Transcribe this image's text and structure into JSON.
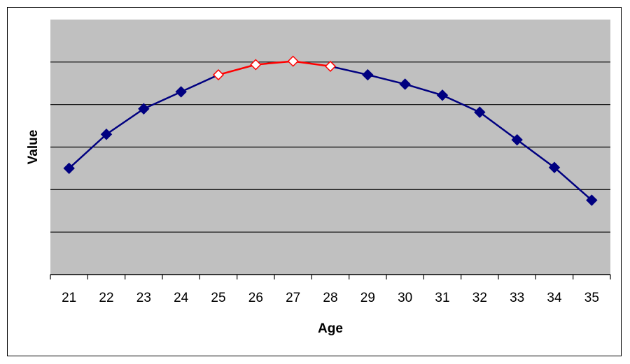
{
  "chart_data": {
    "type": "line",
    "xlabel": "Age",
    "ylabel": "Value",
    "x": [
      21,
      22,
      23,
      24,
      25,
      26,
      27,
      28,
      29,
      30,
      31,
      32,
      33,
      34,
      35
    ],
    "values": [
      2.5,
      3.3,
      3.9,
      4.3,
      4.7,
      4.94,
      5.02,
      4.9,
      4.7,
      4.48,
      4.22,
      3.82,
      3.17,
      2.52,
      1.75
    ],
    "highlight_range": [
      25,
      28
    ],
    "ylim": [
      0,
      6
    ],
    "y_grid_step": 1,
    "y_tick_labels_shown": false,
    "grid": true,
    "legend": "none",
    "colors": {
      "plot_background": "#c0c0c0",
      "series": "#000080",
      "highlight": "#ff0000",
      "highlight_marker_fill": "#ffffff"
    }
  }
}
